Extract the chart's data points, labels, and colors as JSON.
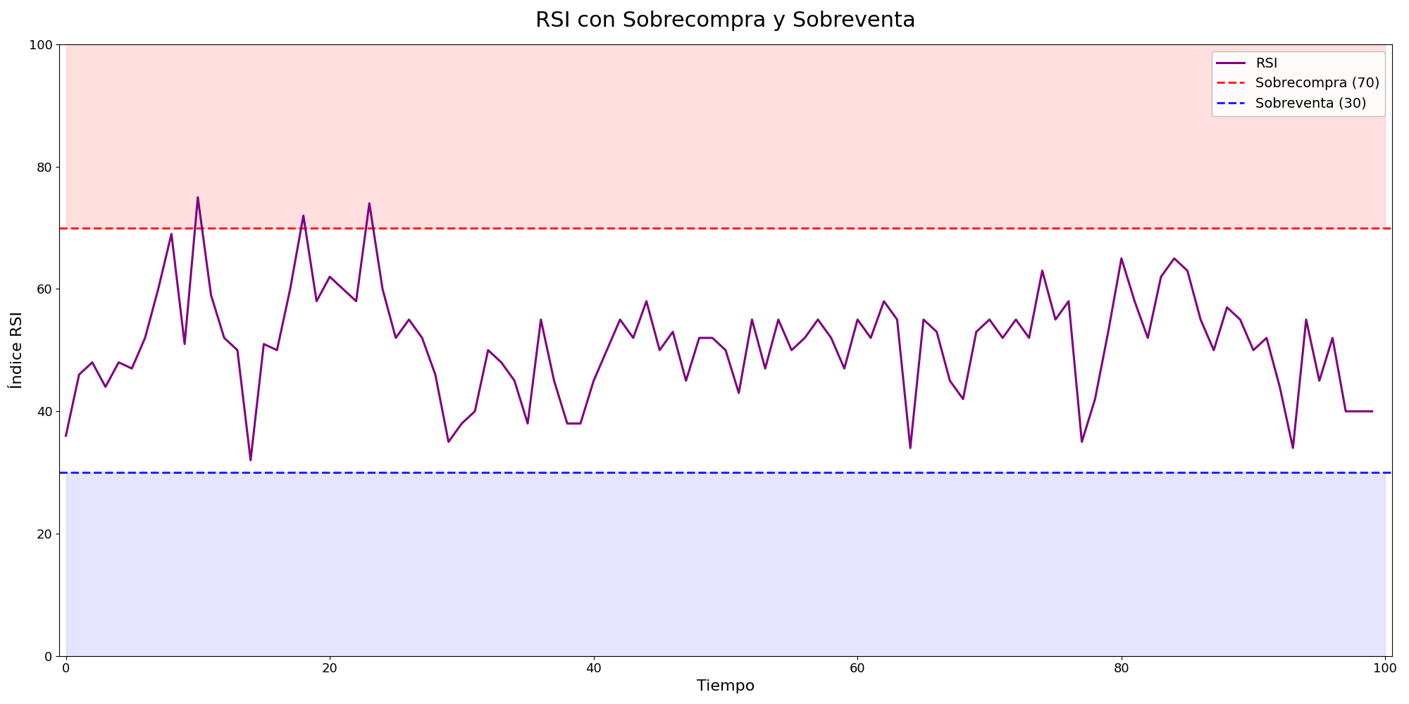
{
  "title": "RSI con Sobrecompra y Sobreventa",
  "xlabel": "Tiempo",
  "ylabel": "Índice RSI",
  "overbought": 70,
  "oversold": 30,
  "ylim": [
    0,
    100
  ],
  "xlim": [
    -0.5,
    100.5
  ],
  "fill_xlim": [
    0,
    100
  ],
  "overbought_color": "#FF2222",
  "oversold_color": "#2222FF",
  "rsi_color": "#800080",
  "overbought_fill_color": "#FFB0B0",
  "oversold_fill_color": "#C0C0FF",
  "overbought_fill_alpha": 0.4,
  "oversold_fill_alpha": 0.4,
  "line_width": 2.2,
  "dashed_linewidth": 2.2,
  "legend_entries": [
    "RSI",
    "Sobrecompra (70)",
    "Sobreventa (30)"
  ],
  "title_fontsize": 22,
  "label_fontsize": 16,
  "tick_fontsize": 13,
  "legend_fontsize": 14,
  "rsi_values": [
    36,
    46,
    48,
    44,
    48,
    47,
    52,
    60,
    69,
    51,
    75,
    59,
    52,
    50,
    32,
    51,
    50,
    60,
    72,
    58,
    62,
    60,
    58,
    74,
    60,
    52,
    55,
    52,
    46,
    35,
    38,
    40,
    50,
    48,
    45,
    38,
    55,
    45,
    38,
    38,
    45,
    50,
    55,
    52,
    58,
    50,
    53,
    45,
    52,
    52,
    50,
    43,
    55,
    47,
    55,
    50,
    52,
    55,
    52,
    47,
    55,
    52,
    58,
    55,
    34,
    55,
    53,
    45,
    42,
    53,
    55,
    52,
    55,
    52,
    63,
    55,
    58,
    35,
    42,
    53,
    65,
    58,
    52,
    62,
    65,
    63,
    55,
    50,
    57,
    55,
    50,
    52,
    44,
    34,
    55,
    45,
    52,
    40,
    40,
    40
  ]
}
